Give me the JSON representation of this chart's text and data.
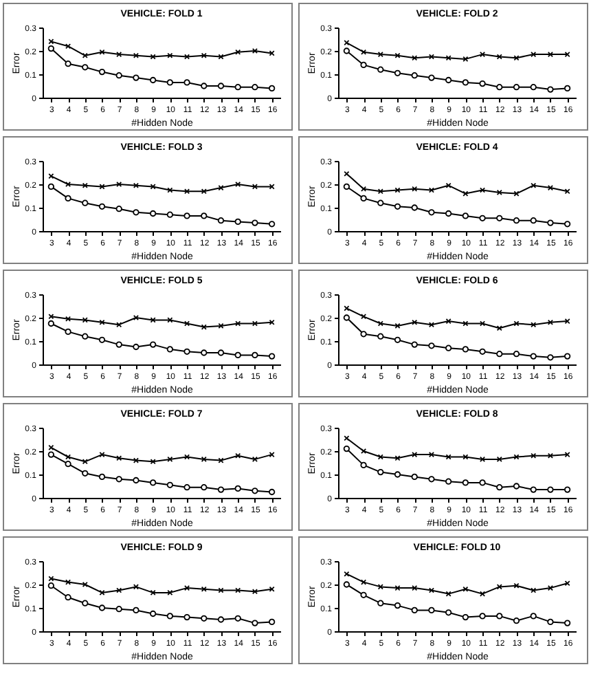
{
  "chart_data": [
    {
      "type": "line",
      "title": "VEHICLE: FOLD 1",
      "xlabel": "#Hidden Node",
      "ylabel": "Error",
      "categories": [
        "3",
        "4",
        "5",
        "6",
        "7",
        "8",
        "9",
        "10",
        "11",
        "12",
        "13",
        "14",
        "15",
        "16"
      ],
      "ylim": [
        0,
        0.3
      ],
      "yticks": [
        0,
        0.1,
        0.2,
        0.3
      ],
      "grid": false,
      "series": [
        {
          "color": "#000000",
          "marker": "cross",
          "values": [
            0.24,
            0.22,
            0.18,
            0.195,
            0.185,
            0.18,
            0.175,
            0.18,
            0.175,
            0.18,
            0.175,
            0.195,
            0.2,
            0.19
          ]
        },
        {
          "color": "#000000",
          "marker": "circle",
          "values": [
            0.21,
            0.145,
            0.13,
            0.11,
            0.095,
            0.085,
            0.075,
            0.065,
            0.065,
            0.05,
            0.05,
            0.045,
            0.045,
            0.04
          ]
        }
      ]
    },
    {
      "type": "line",
      "title": "VEHICLE: FOLD 2",
      "xlabel": "#Hidden Node",
      "ylabel": "Error",
      "categories": [
        "3",
        "4",
        "5",
        "6",
        "7",
        "8",
        "9",
        "10",
        "11",
        "12",
        "13",
        "14",
        "15",
        "16"
      ],
      "ylim": [
        0,
        0.3
      ],
      "yticks": [
        0,
        0.1,
        0.2,
        0.3
      ],
      "grid": false,
      "series": [
        {
          "color": "#000000",
          "marker": "cross",
          "values": [
            0.235,
            0.195,
            0.185,
            0.18,
            0.17,
            0.175,
            0.17,
            0.165,
            0.185,
            0.175,
            0.17,
            0.185,
            0.185,
            0.185
          ]
        },
        {
          "color": "#000000",
          "marker": "circle",
          "values": [
            0.2,
            0.14,
            0.12,
            0.105,
            0.095,
            0.085,
            0.075,
            0.065,
            0.06,
            0.045,
            0.045,
            0.045,
            0.035,
            0.04
          ]
        }
      ]
    },
    {
      "type": "line",
      "title": "VEHICLE: FOLD 3",
      "xlabel": "#Hidden Node",
      "ylabel": "Error",
      "categories": [
        "3",
        "4",
        "5",
        "6",
        "7",
        "8",
        "9",
        "10",
        "11",
        "12",
        "13",
        "14",
        "15",
        "16"
      ],
      "ylim": [
        0,
        0.3
      ],
      "yticks": [
        0,
        0.1,
        0.2,
        0.3
      ],
      "grid": false,
      "series": [
        {
          "color": "#000000",
          "marker": "cross",
          "values": [
            0.235,
            0.2,
            0.195,
            0.19,
            0.2,
            0.195,
            0.19,
            0.175,
            0.17,
            0.17,
            0.185,
            0.2,
            0.19,
            0.19
          ]
        },
        {
          "color": "#000000",
          "marker": "circle",
          "values": [
            0.19,
            0.14,
            0.12,
            0.105,
            0.095,
            0.08,
            0.075,
            0.07,
            0.065,
            0.065,
            0.045,
            0.04,
            0.035,
            0.03
          ]
        }
      ]
    },
    {
      "type": "line",
      "title": "VEHICLE: FOLD 4",
      "xlabel": "#Hidden Node",
      "ylabel": "Error",
      "categories": [
        "3",
        "4",
        "5",
        "6",
        "7",
        "8",
        "9",
        "10",
        "11",
        "12",
        "13",
        "14",
        "15",
        "16"
      ],
      "ylim": [
        0,
        0.3
      ],
      "yticks": [
        0,
        0.1,
        0.2,
        0.3
      ],
      "grid": false,
      "series": [
        {
          "color": "#000000",
          "marker": "cross",
          "values": [
            0.245,
            0.18,
            0.17,
            0.175,
            0.18,
            0.175,
            0.195,
            0.16,
            0.175,
            0.165,
            0.16,
            0.195,
            0.185,
            0.17
          ]
        },
        {
          "color": "#000000",
          "marker": "circle",
          "values": [
            0.19,
            0.14,
            0.12,
            0.105,
            0.1,
            0.08,
            0.075,
            0.065,
            0.055,
            0.055,
            0.045,
            0.045,
            0.035,
            0.03
          ]
        }
      ]
    },
    {
      "type": "line",
      "title": "VEHICLE: FOLD 5",
      "xlabel": "#Hidden Node",
      "ylabel": "Error",
      "categories": [
        "3",
        "4",
        "5",
        "6",
        "7",
        "8",
        "9",
        "10",
        "11",
        "12",
        "13",
        "14",
        "15",
        "16"
      ],
      "ylim": [
        0,
        0.3
      ],
      "yticks": [
        0,
        0.1,
        0.2,
        0.3
      ],
      "grid": false,
      "series": [
        {
          "color": "#000000",
          "marker": "cross",
          "values": [
            0.205,
            0.195,
            0.19,
            0.18,
            0.17,
            0.2,
            0.19,
            0.19,
            0.175,
            0.16,
            0.165,
            0.175,
            0.175,
            0.18
          ]
        },
        {
          "color": "#000000",
          "marker": "circle",
          "values": [
            0.175,
            0.14,
            0.12,
            0.105,
            0.085,
            0.075,
            0.085,
            0.065,
            0.055,
            0.05,
            0.05,
            0.04,
            0.04,
            0.035
          ]
        }
      ]
    },
    {
      "type": "line",
      "title": "VEHICLE: FOLD 6",
      "xlabel": "#Hidden Node",
      "ylabel": "Error",
      "categories": [
        "3",
        "4",
        "5",
        "6",
        "7",
        "8",
        "9",
        "10",
        "11",
        "12",
        "13",
        "14",
        "15",
        "16"
      ],
      "ylim": [
        0,
        0.3
      ],
      "yticks": [
        0,
        0.1,
        0.2,
        0.3
      ],
      "grid": false,
      "series": [
        {
          "color": "#000000",
          "marker": "cross",
          "values": [
            0.24,
            0.205,
            0.175,
            0.165,
            0.18,
            0.17,
            0.185,
            0.175,
            0.175,
            0.155,
            0.175,
            0.17,
            0.18,
            0.185
          ]
        },
        {
          "color": "#000000",
          "marker": "circle",
          "values": [
            0.2,
            0.13,
            0.12,
            0.105,
            0.085,
            0.08,
            0.07,
            0.065,
            0.055,
            0.045,
            0.045,
            0.035,
            0.03,
            0.035
          ]
        }
      ]
    },
    {
      "type": "line",
      "title": "VEHICLE: FOLD 7",
      "xlabel": "#Hidden Node",
      "ylabel": "Error",
      "categories": [
        "3",
        "4",
        "5",
        "6",
        "7",
        "8",
        "9",
        "10",
        "11",
        "12",
        "13",
        "14",
        "15",
        "16"
      ],
      "ylim": [
        0,
        0.3
      ],
      "yticks": [
        0,
        0.1,
        0.2,
        0.3
      ],
      "grid": false,
      "series": [
        {
          "color": "#000000",
          "marker": "cross",
          "values": [
            0.215,
            0.175,
            0.155,
            0.185,
            0.17,
            0.16,
            0.155,
            0.165,
            0.175,
            0.165,
            0.16,
            0.18,
            0.165,
            0.185
          ]
        },
        {
          "color": "#000000",
          "marker": "circle",
          "values": [
            0.185,
            0.145,
            0.105,
            0.09,
            0.08,
            0.075,
            0.065,
            0.055,
            0.045,
            0.045,
            0.035,
            0.04,
            0.03,
            0.025
          ]
        }
      ]
    },
    {
      "type": "line",
      "title": "VEHICLE: FOLD 8",
      "xlabel": "#Hidden Node",
      "ylabel": "Error",
      "categories": [
        "3",
        "4",
        "5",
        "6",
        "7",
        "8",
        "9",
        "10",
        "11",
        "12",
        "13",
        "14",
        "15",
        "16"
      ],
      "ylim": [
        0,
        0.3
      ],
      "yticks": [
        0,
        0.1,
        0.2,
        0.3
      ],
      "grid": false,
      "series": [
        {
          "color": "#000000",
          "marker": "cross",
          "values": [
            0.255,
            0.2,
            0.175,
            0.17,
            0.185,
            0.185,
            0.175,
            0.175,
            0.165,
            0.165,
            0.175,
            0.18,
            0.18,
            0.185
          ]
        },
        {
          "color": "#000000",
          "marker": "circle",
          "values": [
            0.21,
            0.14,
            0.11,
            0.1,
            0.09,
            0.08,
            0.07,
            0.065,
            0.065,
            0.045,
            0.05,
            0.035,
            0.035,
            0.035
          ]
        }
      ]
    },
    {
      "type": "line",
      "title": "VEHICLE: FOLD 9",
      "xlabel": "#Hidden Node",
      "ylabel": "Error",
      "categories": [
        "3",
        "4",
        "5",
        "6",
        "7",
        "8",
        "9",
        "10",
        "11",
        "12",
        "13",
        "14",
        "15",
        "16"
      ],
      "ylim": [
        0,
        0.3
      ],
      "yticks": [
        0,
        0.1,
        0.2,
        0.3
      ],
      "grid": false,
      "series": [
        {
          "color": "#000000",
          "marker": "cross",
          "values": [
            0.225,
            0.21,
            0.2,
            0.165,
            0.175,
            0.19,
            0.165,
            0.165,
            0.185,
            0.18,
            0.175,
            0.175,
            0.17,
            0.18
          ]
        },
        {
          "color": "#000000",
          "marker": "circle",
          "values": [
            0.195,
            0.145,
            0.12,
            0.1,
            0.095,
            0.09,
            0.075,
            0.065,
            0.06,
            0.055,
            0.05,
            0.055,
            0.035,
            0.04
          ]
        }
      ]
    },
    {
      "type": "line",
      "title": "VEHICLE: FOLD 10",
      "xlabel": "#Hidden Node",
      "ylabel": "Error",
      "categories": [
        "3",
        "4",
        "5",
        "6",
        "7",
        "8",
        "9",
        "10",
        "11",
        "12",
        "13",
        "14",
        "15",
        "16"
      ],
      "ylim": [
        0,
        0.3
      ],
      "yticks": [
        0,
        0.1,
        0.2,
        0.3
      ],
      "grid": false,
      "series": [
        {
          "color": "#000000",
          "marker": "cross",
          "values": [
            0.245,
            0.21,
            0.19,
            0.185,
            0.185,
            0.175,
            0.16,
            0.18,
            0.16,
            0.19,
            0.195,
            0.175,
            0.185,
            0.205
          ]
        },
        {
          "color": "#000000",
          "marker": "circle",
          "values": [
            0.2,
            0.155,
            0.12,
            0.11,
            0.09,
            0.09,
            0.08,
            0.06,
            0.065,
            0.065,
            0.045,
            0.065,
            0.04,
            0.035
          ]
        }
      ]
    }
  ]
}
